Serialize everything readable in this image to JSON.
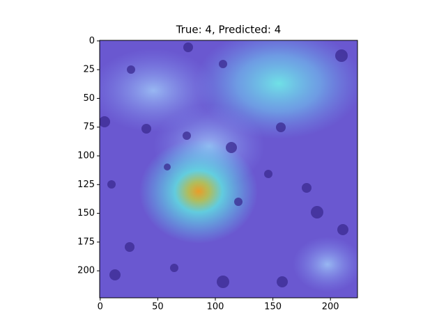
{
  "chart_data": {
    "type": "image",
    "title": "True: 4, Predicted: 4",
    "xlim": [
      -0.5,
      223.5
    ],
    "ylim": [
      223.5,
      -0.5
    ],
    "xticks": [
      0,
      50,
      100,
      150,
      200
    ],
    "yticks": [
      0,
      25,
      50,
      75,
      100,
      125,
      150,
      175,
      200
    ]
  }
}
